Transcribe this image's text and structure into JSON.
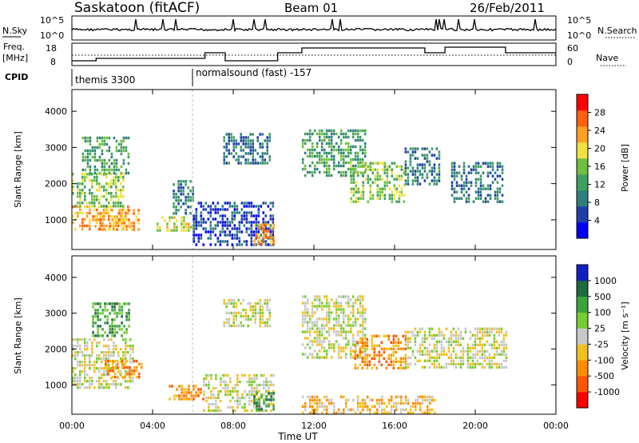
{
  "header": {
    "station": "Saskatoon (fitACF)",
    "beam": "Beam 01",
    "date": "26/Feb/2011"
  },
  "top_panel": {
    "nsky_label": "N.Sky",
    "nsky_ticks": [
      "10^5",
      "10^0"
    ],
    "nsearch_label": "N.Search",
    "nsearch_ticks": [
      "10^5",
      "10^0"
    ],
    "freq_label_1": "Freq.",
    "freq_label_2": "[MHz]",
    "freq_ticks": [
      "18",
      "8"
    ],
    "nave_label": "Nave",
    "nave_ticks": [
      "60",
      "0"
    ],
    "cpid_label": "CPID",
    "cpid_segments": [
      {
        "start_hour": 0,
        "label": "themis 3300"
      },
      {
        "start_hour": 5.9,
        "label": "normalsound (fast) -157"
      }
    ]
  },
  "power_panel": {
    "ylabel": "Slant Range [km]",
    "yticks": [
      "4000",
      "3000",
      "2000",
      "1000"
    ],
    "colorbar_label": "Power [dB]",
    "colorbar_ticks": [
      "28",
      "24",
      "20",
      "16",
      "12",
      "8",
      "4"
    ],
    "colors": [
      "#0000ff",
      "#1f3fa8",
      "#2f7f7f",
      "#3f9f5f",
      "#6fbf3f",
      "#f0e040",
      "#ffa020",
      "#ff6010",
      "#ff0000"
    ]
  },
  "velocity_panel": {
    "ylabel": "Slant Range [km]",
    "yticks": [
      "4000",
      "3000",
      "2000",
      "1000"
    ],
    "colorbar_label": "Velocity [m s⁻¹]",
    "colorbar_ticks": [
      "1000",
      "500",
      "100",
      "25",
      "-25",
      "-100",
      "-500",
      "-1000"
    ],
    "colors": [
      "#1020c0",
      "#206a40",
      "#3ca33c",
      "#77cc33",
      "#c8c8c8",
      "#f0c020",
      "#ff8c00",
      "#ff5500",
      "#ff0000"
    ]
  },
  "x_axis": {
    "ticks": [
      "00:00",
      "04:00",
      "08:00",
      "12:00",
      "16:00",
      "20:00",
      "00:00"
    ],
    "label": "Time UT"
  },
  "chart_data": {
    "type": "heatmap",
    "title": "Saskatoon (fitACF) Beam 01 26/Feb/2011",
    "x": {
      "label": "Time UT",
      "range_hours": [
        0,
        24
      ],
      "ticks": [
        "00:00",
        "04:00",
        "08:00",
        "12:00",
        "16:00",
        "20:00",
        "00:00"
      ]
    },
    "y": {
      "label": "Slant Range [km]",
      "range_km": [
        180,
        4600
      ],
      "ticks": [
        1000,
        2000,
        3000,
        4000
      ]
    },
    "data_gap_hours": [
      10.1,
      11.3
    ],
    "power_db": [
      {
        "t0": 0.0,
        "t1": 2.8,
        "r0": 700,
        "r1": 1400,
        "value": 26
      },
      {
        "t0": 1.0,
        "t1": 3.3,
        "r0": 750,
        "r1": 1300,
        "value": 28
      },
      {
        "t0": 0.0,
        "t1": 2.5,
        "r0": 1400,
        "r1": 2300,
        "value": 18
      },
      {
        "t0": 0.5,
        "t1": 2.8,
        "r0": 2300,
        "r1": 3300,
        "value": 14
      },
      {
        "t0": 4.2,
        "t1": 6.2,
        "r0": 700,
        "r1": 1100,
        "value": 24
      },
      {
        "t0": 5.0,
        "t1": 6.0,
        "r0": 1200,
        "r1": 2100,
        "value": 10
      },
      {
        "t0": 6.0,
        "t1": 10.0,
        "r0": 300,
        "r1": 1500,
        "value": 8
      },
      {
        "t0": 7.5,
        "t1": 9.8,
        "r0": 2600,
        "r1": 3400,
        "value": 10
      },
      {
        "t0": 9.0,
        "t1": 10.0,
        "r0": 300,
        "r1": 900,
        "value": 26
      },
      {
        "t0": 11.4,
        "t1": 14.5,
        "r0": 2200,
        "r1": 3500,
        "value": 14
      },
      {
        "t0": 13.8,
        "t1": 16.5,
        "r0": 1500,
        "r1": 2600,
        "value": 20
      },
      {
        "t0": 16.5,
        "t1": 18.2,
        "r0": 2000,
        "r1": 3000,
        "value": 10
      },
      {
        "t0": 18.8,
        "t1": 21.3,
        "r0": 1500,
        "r1": 2600,
        "value": 10
      }
    ],
    "velocity_ms": [
      {
        "t0": 0.0,
        "t1": 3.0,
        "r0": 900,
        "r1": 2300,
        "value": 0
      },
      {
        "t0": 1.5,
        "t1": 3.5,
        "r0": 1200,
        "r1": 1700,
        "value": -200
      },
      {
        "t0": 1.0,
        "t1": 2.8,
        "r0": 2400,
        "r1": 3300,
        "value": 200
      },
      {
        "t0": 4.8,
        "t1": 6.5,
        "r0": 600,
        "r1": 1000,
        "value": -150
      },
      {
        "t0": 6.5,
        "t1": 10.0,
        "r0": 300,
        "r1": 1300,
        "value": 0
      },
      {
        "t0": 9.0,
        "t1": 10.0,
        "r0": 300,
        "r1": 800,
        "value": 150
      },
      {
        "t0": 7.5,
        "t1": 9.8,
        "r0": 2600,
        "r1": 3400,
        "value": 0
      },
      {
        "t0": 11.4,
        "t1": 14.5,
        "r0": 1800,
        "r1": 3500,
        "value": 0
      },
      {
        "t0": 14.0,
        "t1": 16.5,
        "r0": 1500,
        "r1": 2400,
        "value": -300
      },
      {
        "t0": 16.5,
        "t1": 21.5,
        "r0": 1500,
        "r1": 2600,
        "value": 0
      },
      {
        "t0": 11.4,
        "t1": 18.0,
        "r0": 250,
        "r1": 700,
        "value": -80
      }
    ]
  }
}
